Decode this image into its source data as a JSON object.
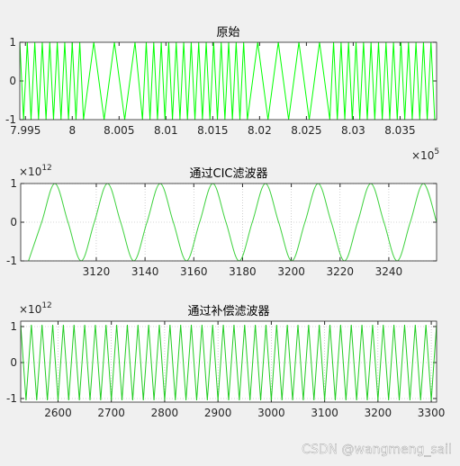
{
  "chart_data": [
    {
      "type": "line",
      "title": "原始",
      "x_exponent": {
        "base": "×10",
        "power": "5"
      },
      "xlim": [
        7.9944,
        8.0389
      ],
      "ylim": [
        -1,
        1
      ],
      "xticks": [
        7.995,
        8,
        8.005,
        8.01,
        8.015,
        8.02,
        8.025,
        8.03,
        8.035
      ],
      "yticks": [
        -1,
        0,
        1
      ],
      "grid": false,
      "smooth": false,
      "x": [
        7.9944,
        7.9948,
        7.9952,
        7.9956,
        7.996,
        7.9964,
        7.9968,
        7.9972,
        7.9976,
        7.998,
        7.9984,
        7.9988,
        7.9992,
        7.9996,
        8.0,
        8.0004,
        8.0008,
        8.0012,
        8.0023,
        8.0034,
        8.0045,
        8.0056,
        8.0067,
        8.0075,
        8.0079,
        8.0083,
        8.0087,
        8.0091,
        8.0095,
        8.0099,
        8.0103,
        8.0107,
        8.0111,
        8.0115,
        8.0119,
        8.0123,
        8.0127,
        8.0131,
        8.0135,
        8.0139,
        8.0143,
        8.0147,
        8.0151,
        8.0155,
        8.0159,
        8.0163,
        8.0167,
        8.0171,
        8.0175,
        8.0179,
        8.0183,
        8.0187,
        8.0198,
        8.0209,
        8.022,
        8.0231,
        8.0242,
        8.0253,
        8.0264,
        8.0275,
        8.0279,
        8.0283,
        8.0287,
        8.0291,
        8.0295,
        8.0299,
        8.0303,
        8.0307,
        8.0311,
        8.0315,
        8.0319,
        8.0323,
        8.0327,
        8.0331,
        8.0335,
        8.0339,
        8.0343,
        8.0347,
        8.0351,
        8.0355,
        8.0359,
        8.0363,
        8.0367,
        8.0371,
        8.0375,
        8.0379,
        8.0383,
        8.0387
      ],
      "series": [
        {
          "color": "#00ff00",
          "values": [
            1,
            -1,
            1,
            -1,
            1,
            -1,
            1,
            -1,
            1,
            -1,
            1,
            -1,
            1,
            -1,
            1,
            -1,
            1,
            -1,
            1,
            -1,
            1,
            -1,
            1,
            -1,
            1,
            -1,
            1,
            -1,
            1,
            -1,
            1,
            -1,
            1,
            -1,
            1,
            -1,
            1,
            -1,
            1,
            -1,
            1,
            -1,
            1,
            -1,
            1,
            -1,
            1,
            -1,
            1,
            -1,
            1,
            -1,
            1,
            -1,
            1,
            -1,
            1,
            -1,
            1,
            -1,
            1,
            -1,
            1,
            -1,
            1,
            -1,
            1,
            -1,
            1,
            -1,
            1,
            -1,
            1,
            -1,
            1,
            -1,
            1,
            -1,
            1,
            -1,
            1,
            -1,
            1,
            -1,
            1,
            -1,
            1,
            -1
          ]
        }
      ]
    },
    {
      "type": "line",
      "title": "通过CIC滤波器",
      "y_exponent": {
        "base": "×10",
        "power": "12"
      },
      "xlim": [
        3089,
        3259.6
      ],
      "ylim": [
        -1,
        1
      ],
      "xticks": [
        3120,
        3140,
        3160,
        3180,
        3200,
        3220,
        3240
      ],
      "yticks": [
        -1,
        0,
        1
      ],
      "grid": true,
      "smooth": true,
      "x": [
        3092.2,
        3097.6,
        3103,
        3108.4,
        3113.8,
        3119.2,
        3124.6,
        3130,
        3135.4,
        3140.8,
        3146.2,
        3151.6,
        3157,
        3162.4,
        3167.8,
        3173.2,
        3178.6,
        3184,
        3189.4,
        3194.8,
        3200.2,
        3205.6,
        3211,
        3216.4,
        3221.8,
        3227.2,
        3232.6,
        3238,
        3243.4,
        3248.8,
        3254.2,
        3259.6
      ],
      "series": [
        {
          "color": "#3dd13d",
          "values": [
            -1,
            0,
            1,
            0,
            -1,
            0,
            1,
            0,
            -1,
            0,
            1,
            0,
            -1,
            0,
            1,
            0,
            -1,
            0,
            1,
            0,
            -1,
            0,
            1,
            0,
            -1,
            0,
            1,
            0,
            -1,
            0,
            1,
            0
          ]
        }
      ]
    },
    {
      "type": "line",
      "title": "通过补偿滤波器",
      "y_exponent": {
        "base": "×10",
        "power": "12"
      },
      "xlim": [
        2530,
        3310
      ],
      "ylim": [
        -1.1,
        1.15
      ],
      "xticks": [
        2600,
        2700,
        2800,
        2900,
        3000,
        3100,
        3200,
        3300
      ],
      "yticks": [
        -1,
        0,
        1
      ],
      "grid": true,
      "smooth": false,
      "x": [
        2530,
        2540,
        2550,
        2560,
        2570,
        2580,
        2590,
        2600,
        2610,
        2620,
        2630,
        2640,
        2650,
        2660,
        2670,
        2680,
        2690,
        2700,
        2710,
        2720,
        2730,
        2740,
        2750,
        2760,
        2770,
        2780,
        2790,
        2800,
        2810,
        2820,
        2830,
        2840,
        2850,
        2860,
        2870,
        2880,
        2890,
        2900,
        2910,
        2920,
        2930,
        2940,
        2950,
        2960,
        2970,
        2980,
        2990,
        3000,
        3010,
        3020,
        3030,
        3040,
        3050,
        3060,
        3070,
        3080,
        3090,
        3100,
        3110,
        3120,
        3130,
        3140,
        3150,
        3160,
        3170,
        3180,
        3190,
        3200,
        3210,
        3220,
        3230,
        3240,
        3250,
        3260,
        3270,
        3280,
        3290,
        3300,
        3310
      ],
      "series": [
        {
          "color": "#22cc22",
          "values": [
            1.05,
            -1.05,
            1.05,
            -1.05,
            1.05,
            -1.05,
            1.05,
            -1.05,
            1.05,
            -1.05,
            1.05,
            -1.05,
            1.05,
            -1.05,
            1.05,
            -1.05,
            1.05,
            -1.05,
            1.05,
            -1.05,
            1.05,
            -1.05,
            1.05,
            -1.05,
            1.05,
            -1.05,
            1.05,
            -1.05,
            1.05,
            -1.05,
            1.05,
            -1.05,
            1.05,
            -1.05,
            1.05,
            -1.05,
            1.05,
            -1.05,
            1.05,
            -1.05,
            1.05,
            -1.05,
            1.05,
            -1.05,
            1.05,
            -1.05,
            1.05,
            -1.05,
            1.05,
            -1.05,
            1.05,
            -1.05,
            1.05,
            -1.05,
            1.05,
            -1.05,
            1.05,
            -1.05,
            1.05,
            -1.05,
            1.05,
            -1.05,
            1.05,
            -1.05,
            1.05,
            -1.05,
            1.05,
            -1.05,
            1.05,
            -1.05,
            1.05,
            -1.05,
            1.05,
            -1.05,
            1.05,
            -1.05,
            1.05,
            -1.05,
            1.05
          ]
        }
      ]
    }
  ],
  "watermark": "CSDN @wangmeng_sail"
}
